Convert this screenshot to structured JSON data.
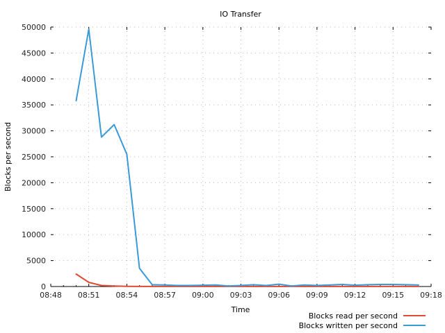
{
  "chart_data": {
    "type": "line",
    "title": "IO Transfer",
    "xlabel": "Time",
    "ylabel": "Blocks per second",
    "xlim": [
      "08:48",
      "09:18"
    ],
    "ylim": [
      0,
      50000
    ],
    "x_ticks": [
      "08:48",
      "08:51",
      "08:54",
      "08:57",
      "09:00",
      "09:03",
      "09:06",
      "09:09",
      "09:12",
      "09:15",
      "09:18"
    ],
    "y_ticks": [
      0,
      5000,
      10000,
      15000,
      20000,
      25000,
      30000,
      35000,
      40000,
      45000,
      50000
    ],
    "grid": true,
    "legend_position": "bottom-right",
    "x": [
      "08:50",
      "08:51",
      "08:52",
      "08:53",
      "08:54",
      "08:55",
      "08:56",
      "08:57",
      "08:58",
      "08:59",
      "09:00",
      "09:01",
      "09:02",
      "09:03",
      "09:04",
      "09:05",
      "09:06",
      "09:07",
      "09:08",
      "09:09",
      "09:10",
      "09:11",
      "09:12",
      "09:13",
      "09:14",
      "09:15",
      "09:16",
      "09:17"
    ],
    "series": [
      {
        "name": "Blocks read per second",
        "color": "#e04a32",
        "values": [
          2400,
          800,
          200,
          100,
          30,
          20,
          10,
          10,
          10,
          10,
          10,
          10,
          10,
          10,
          10,
          10,
          10,
          10,
          10,
          10,
          10,
          10,
          10,
          10,
          10,
          10,
          20,
          10
        ]
      },
      {
        "name": "Blocks written per second",
        "color": "#3a9ad8",
        "values": [
          35800,
          49600,
          28800,
          31200,
          25500,
          3500,
          350,
          300,
          200,
          200,
          250,
          300,
          100,
          200,
          350,
          200,
          450,
          100,
          300,
          200,
          300,
          400,
          250,
          350,
          400,
          400,
          350,
          300
        ]
      }
    ]
  }
}
